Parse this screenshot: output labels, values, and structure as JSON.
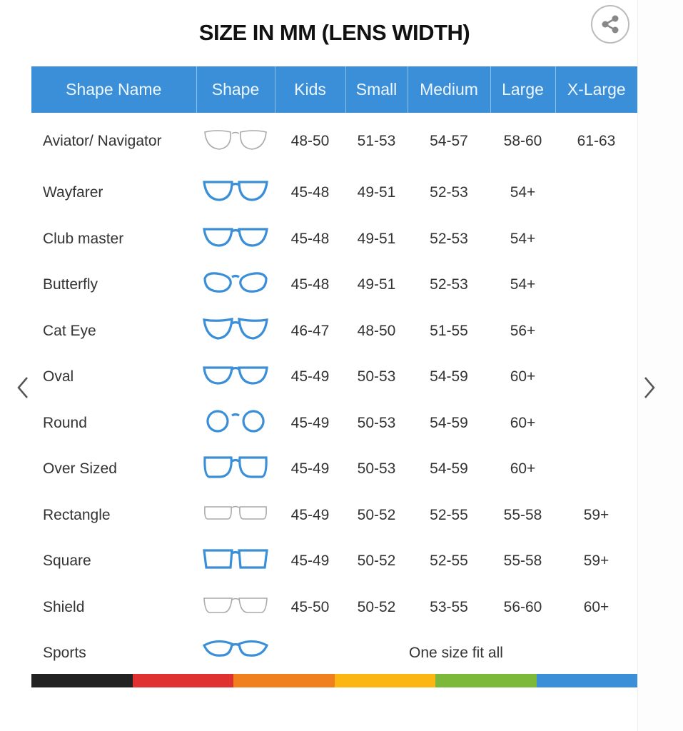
{
  "title": "SIZE IN MM (LENS WIDTH)",
  "icons": {
    "share": "share-icon",
    "prev": "chevron-left-icon",
    "next": "chevron-right-icon"
  },
  "colors": {
    "header": "#3a8fd8",
    "frame_blue": "#3a8fd8",
    "frame_gray": "#aaaaaa"
  },
  "columns": [
    "Shape Name",
    "Shape",
    "Kids",
    "Small",
    "Medium",
    "Large",
    "X-Large"
  ],
  "rows": [
    {
      "name": "Aviator/ Navigator",
      "shape": "aviator",
      "values": [
        "48-50",
        "51-53",
        "54-57",
        "58-60",
        "61-63"
      ]
    },
    {
      "name": "Wayfarer",
      "shape": "wayfarer",
      "values": [
        "45-48",
        "49-51",
        "52-53",
        "54+",
        ""
      ]
    },
    {
      "name": "Club master",
      "shape": "clubmaster",
      "values": [
        "45-48",
        "49-51",
        "52-53",
        "54+",
        ""
      ]
    },
    {
      "name": "Butterfly",
      "shape": "butterfly",
      "values": [
        "45-48",
        "49-51",
        "52-53",
        "54+",
        ""
      ]
    },
    {
      "name": "Cat Eye",
      "shape": "cateye",
      "values": [
        "46-47",
        "48-50",
        "51-55",
        "56+",
        ""
      ]
    },
    {
      "name": "Oval",
      "shape": "oval",
      "values": [
        "45-49",
        "50-53",
        "54-59",
        "60+",
        ""
      ]
    },
    {
      "name": "Round",
      "shape": "round",
      "values": [
        "45-49",
        "50-53",
        "54-59",
        "60+",
        ""
      ]
    },
    {
      "name": "Over Sized",
      "shape": "oversized",
      "values": [
        "45-49",
        "50-53",
        "54-59",
        "60+",
        ""
      ]
    },
    {
      "name": "Rectangle",
      "shape": "rectangle",
      "values": [
        "45-49",
        "50-52",
        "52-55",
        "55-58",
        "59+"
      ]
    },
    {
      "name": "Square",
      "shape": "square",
      "values": [
        "45-49",
        "50-52",
        "52-55",
        "55-58",
        "59+"
      ]
    },
    {
      "name": "Shield",
      "shape": "shield",
      "values": [
        "45-50",
        "50-52",
        "53-55",
        "56-60",
        "60+"
      ]
    },
    {
      "name": "Sports",
      "shape": "sports",
      "span_text": "One size fit all"
    }
  ],
  "color_bar": [
    "#222222",
    "#e03131",
    "#f0801e",
    "#fbb614",
    "#7cb93a",
    "#3a8fd8"
  ]
}
